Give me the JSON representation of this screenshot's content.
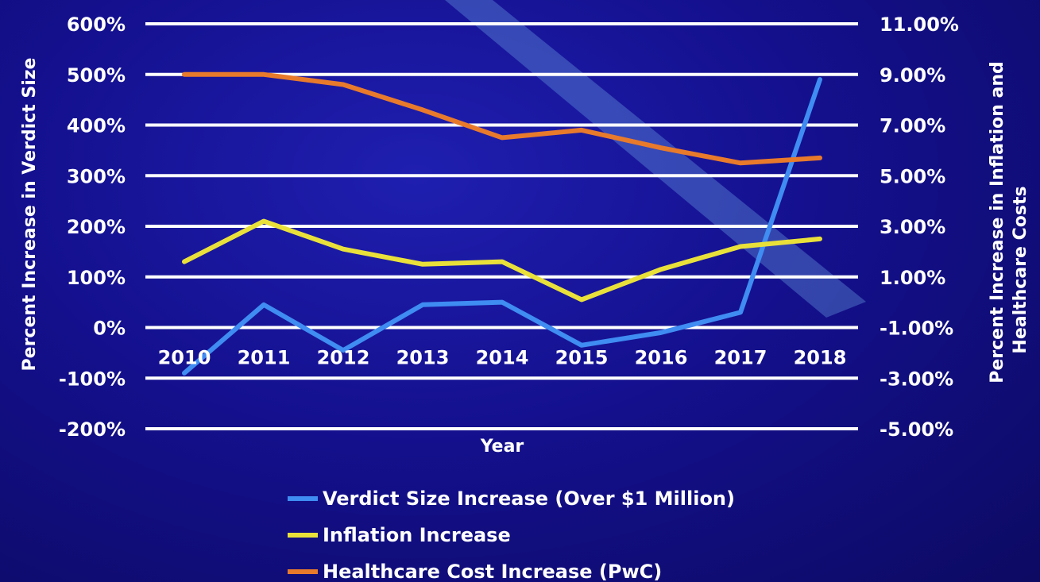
{
  "chart_data": {
    "type": "line",
    "title": "",
    "xlabel": "Year",
    "ylabel_left": "Percent Increase in Verdict Size",
    "ylabel_right": "Percent Increase in Inflation and Healthcare Costs",
    "categories": [
      "2010",
      "2011",
      "2012",
      "2013",
      "2014",
      "2015",
      "2016",
      "2017",
      "2018"
    ],
    "y_left": {
      "range": [
        -200,
        600
      ],
      "ticks": [
        600,
        500,
        400,
        300,
        200,
        100,
        0,
        -100,
        -200
      ],
      "tick_labels": [
        "600%",
        "500%",
        "400%",
        "300%",
        "200%",
        "100%",
        "0%",
        "-100%",
        "-200%"
      ]
    },
    "y_right": {
      "range": [
        -5,
        11
      ],
      "ticks": [
        11,
        9,
        7,
        5,
        3,
        1,
        -1,
        -3,
        -5
      ],
      "tick_labels": [
        "11.00%",
        "9.00%",
        "7.00%",
        "5.00%",
        "3.00%",
        "1.00%",
        "-1.00%",
        "-3.00%",
        "-5.00%"
      ]
    },
    "grid": true,
    "legend_position": "bottom",
    "series": [
      {
        "name": "Verdict Size Increase (Over $1 Million)",
        "axis": "left",
        "color": "#3f8cf2",
        "values": [
          -90,
          45,
          -45,
          45,
          50,
          -35,
          -10,
          30,
          490
        ]
      },
      {
        "name": "Inflation Increase",
        "axis": "right",
        "color": "#e9e13a",
        "values": [
          1.6,
          3.2,
          2.1,
          1.5,
          1.6,
          0.1,
          1.3,
          2.2,
          2.5
        ]
      },
      {
        "name": "Healthcare Cost Increase (PwC)",
        "axis": "right",
        "color": "#e87a2c",
        "values": [
          9.0,
          9.0,
          8.6,
          7.6,
          6.5,
          6.8,
          6.1,
          5.5,
          5.7
        ]
      }
    ]
  }
}
